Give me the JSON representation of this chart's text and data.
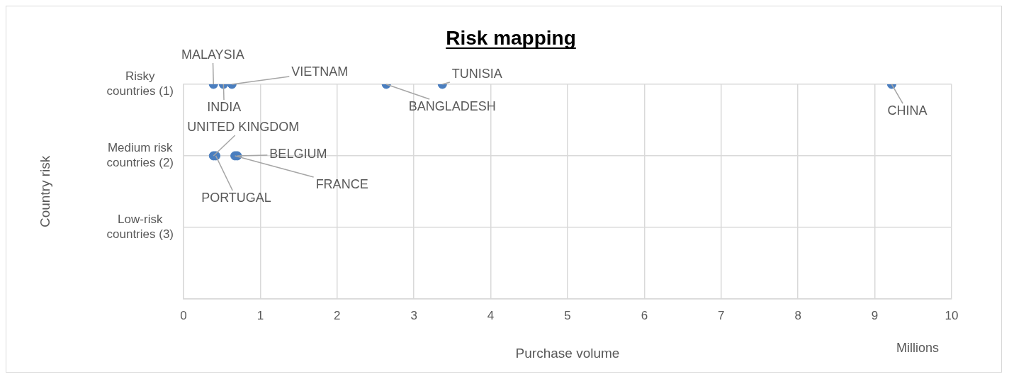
{
  "chart_data": {
    "type": "scatter",
    "title": "Risk mapping",
    "xlabel": "Purchase volume",
    "ylabel": "Country risk",
    "x": [
      0.39,
      0.52,
      0.63,
      2.64,
      3.37,
      9.22,
      0.39,
      0.42,
      0.7,
      0.67
    ],
    "series": [
      {
        "color": "#4a7ebf",
        "values": [
          1,
          1,
          1,
          1,
          1,
          1,
          2,
          2,
          2,
          2
        ]
      }
    ],
    "annotations": [
      {
        "text": "MALAYSIA",
        "x": 0.39,
        "y": 1
      },
      {
        "text": "INDIA",
        "x": 0.52,
        "y": 1
      },
      {
        "text": "VIETNAM",
        "x": 0.63,
        "y": 1
      },
      {
        "text": "BANGLADESH",
        "x": 2.64,
        "y": 1
      },
      {
        "text": "TUNISIA",
        "x": 3.37,
        "y": 1
      },
      {
        "text": "CHINA",
        "x": 9.22,
        "y": 1
      },
      {
        "text": "UNITED KINGDOM",
        "x": 0.39,
        "y": 2
      },
      {
        "text": "PORTUGAL",
        "x": 0.42,
        "y": 2
      },
      {
        "text": "BELGIUM",
        "x": 0.7,
        "y": 2
      },
      {
        "text": "FRANCE",
        "x": 0.67,
        "y": 2
      },
      "Millions"
    ],
    "xlim": [
      0,
      10
    ],
    "xticks": [
      0,
      1,
      2,
      3,
      4,
      5,
      6,
      7,
      8,
      9,
      10
    ],
    "ylim": [
      4,
      1
    ],
    "yticks": [
      {
        "value": 1,
        "label": "Risky countries (1)"
      },
      {
        "value": 2,
        "label": "Medium risk countries (2)"
      },
      {
        "value": 3,
        "label": "Low-risk countries (3)"
      },
      {
        "value": 4,
        "label": null
      }
    ],
    "grid": true,
    "legend": false,
    "marker": "circle"
  }
}
